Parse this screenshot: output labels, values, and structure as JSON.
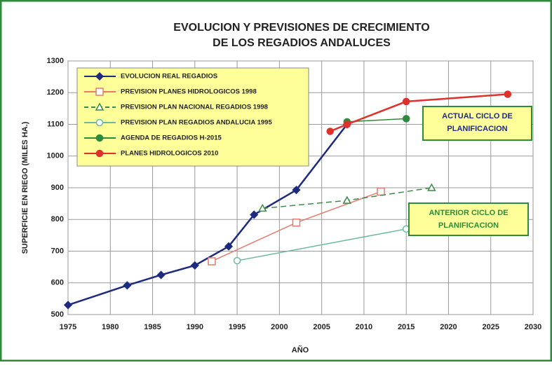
{
  "chart_data": {
    "type": "line",
    "title": [
      "EVOLUCION Y PREVISIONES DE CRECIMIENTO",
      "DE LOS REGADIOS ANDALUCES"
    ],
    "x_label": "AÑO",
    "y_label": "SUPERFICIE EN RIEGO (MILES HA.)",
    "xlim": [
      1975,
      2030
    ],
    "xticks": [
      1975,
      1980,
      1985,
      1990,
      1995,
      2000,
      2005,
      2010,
      2015,
      2020,
      2025,
      2030
    ],
    "ylim": [
      500,
      1300
    ],
    "yticks": [
      500,
      600,
      700,
      800,
      900,
      1000,
      1100,
      1200,
      1300
    ],
    "grid": true,
    "legend": "upper-left",
    "series": [
      {
        "name": "EVOLUCION REAL REGADIOS",
        "color": "#1c2a80",
        "marker": "diamond",
        "dash": false,
        "x": [
          1975,
          1982,
          1986,
          1990,
          1994,
          1997,
          2002,
          2008
        ],
        "values": [
          530,
          592,
          625,
          655,
          715,
          815,
          893,
          1100
        ]
      },
      {
        "name": "PREVISION PLANES HIDROLOGICOS 1998",
        "color": "#e57a6e",
        "marker": "square",
        "dash": false,
        "x": [
          1992,
          2002,
          2012
        ],
        "values": [
          668,
          790,
          888
        ]
      },
      {
        "name": "PREVISION PLAN NACIONAL REGADIOS 1998",
        "color": "#3c8a4a",
        "marker": "triangle",
        "dash": true,
        "x": [
          1998,
          2008,
          2018
        ],
        "values": [
          835,
          860,
          900
        ]
      },
      {
        "name": "PREVISION PLAN REGADIOS ANDALUCIA 1995",
        "color": "#6cb8a0",
        "marker": "circle-open",
        "dash": false,
        "x": [
          1995,
          2015
        ],
        "values": [
          670,
          770
        ]
      },
      {
        "name": "AGENDA DE REGADIOS H-2015",
        "color": "#2e8b3d",
        "marker": "circle",
        "dash": false,
        "x": [
          2008,
          2015
        ],
        "values": [
          1108,
          1118
        ]
      },
      {
        "name": "PLANES HIDROLOGICOS 2010",
        "color": "#e0302a",
        "marker": "circle",
        "dash": false,
        "x": [
          2006,
          2008,
          2015,
          2027
        ],
        "values": [
          1078,
          1100,
          1172,
          1195
        ]
      }
    ],
    "annotations": [
      {
        "text": [
          "ACTUAL CICLO DE",
          "PLANIFICACION"
        ],
        "color": "#1c2a80",
        "fill": "#ffff99",
        "border": "#2e8b3d"
      },
      {
        "text": [
          "ANTERIOR CICLO DE",
          "PLANIFICACION"
        ],
        "color": "#2e8b3d",
        "fill": "#ffff99",
        "border": "#2e8b3d"
      }
    ]
  }
}
